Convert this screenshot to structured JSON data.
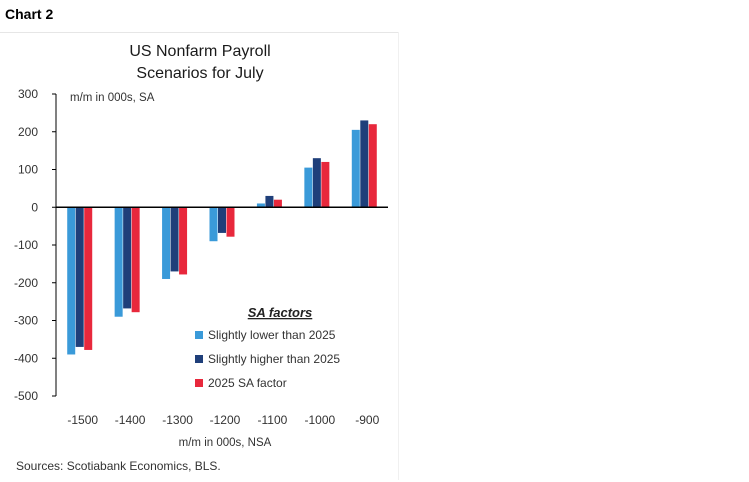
{
  "header": {
    "chart_label": "Chart 2"
  },
  "colors": {
    "lower": "#3a9ad9",
    "higher": "#1f3f7a",
    "same": "#e8283c",
    "axis": "#000000",
    "text": "#333333"
  },
  "chart_data": {
    "type": "bar",
    "title_line1": "US Nonfarm Payroll",
    "title_line2": "Scenarios for July",
    "title": "US Nonfarm Payroll Scenarios for July",
    "ylabel": "m/m in 000s, SA",
    "xlabel": "m/m in 000s, NSA",
    "ylim": [
      -500,
      300
    ],
    "yticks": [
      300,
      200,
      100,
      0,
      -100,
      -200,
      -300,
      -400,
      -500
    ],
    "categories": [
      "-1500",
      "-1400",
      "-1300",
      "-1200",
      "-1100",
      "-1000",
      "-900"
    ],
    "series": [
      {
        "name": "Slightly lower than 2025",
        "color": "#3a9ad9",
        "values": [
          -390,
          -290,
          -190,
          -90,
          10,
          105,
          205
        ]
      },
      {
        "name": "Slightly higher than 2025",
        "color": "#1f3f7a",
        "values": [
          -370,
          -268,
          -170,
          -68,
          30,
          130,
          230
        ]
      },
      {
        "name": "2025 SA factor",
        "color": "#e8283c",
        "values": [
          -378,
          -278,
          -178,
          -78,
          20,
          120,
          220
        ]
      }
    ],
    "legend_title": "SA factors",
    "legend_position": "bottom-right",
    "grid": false,
    "source": "Sources: Scotiabank Economics, BLS."
  }
}
